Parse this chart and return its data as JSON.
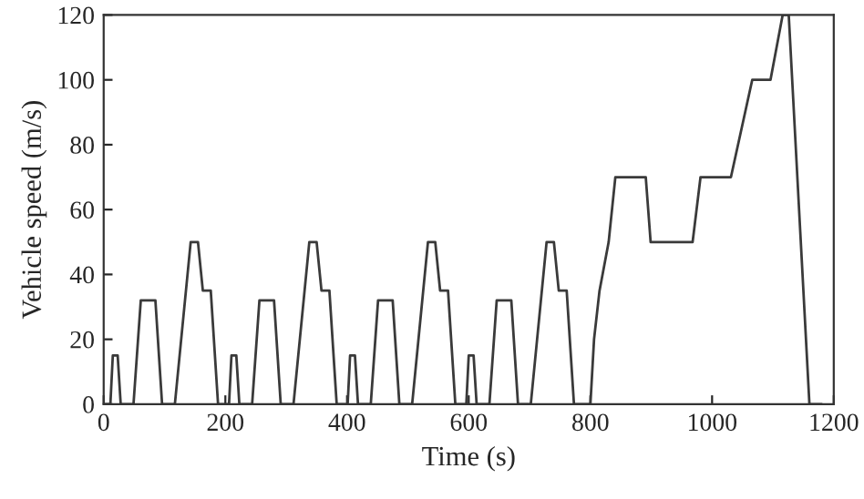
{
  "chart_data": {
    "type": "line",
    "xlabel": "Time (s)",
    "ylabel": "Vehicle speed (m/s)",
    "series": [
      {
        "color": "#3a3a3a",
        "x": [
          0,
          11,
          15,
          23,
          28,
          49,
          61,
          85,
          96,
          117,
          143,
          155,
          163,
          176,
          188,
          206,
          210,
          218,
          223,
          244,
          256,
          280,
          291,
          312,
          338,
          350,
          358,
          371,
          383,
          401,
          405,
          413,
          418,
          439,
          451,
          475,
          486,
          507,
          533,
          545,
          553,
          566,
          578,
          596,
          600,
          608,
          613,
          634,
          646,
          670,
          681,
          702,
          728,
          740,
          748,
          761,
          773,
          800,
          806,
          815,
          830,
          841,
          891,
          899,
          968,
          981,
          1031,
          1066,
          1096,
          1116,
          1126,
          1160,
          1180
        ],
        "values": [
          0,
          0,
          15,
          15,
          0,
          0,
          32,
          32,
          0,
          0,
          50,
          50,
          35,
          35,
          0,
          0,
          15,
          15,
          0,
          0,
          32,
          32,
          0,
          0,
          50,
          50,
          35,
          35,
          0,
          0,
          15,
          15,
          0,
          0,
          32,
          32,
          0,
          0,
          50,
          50,
          35,
          35,
          0,
          0,
          15,
          15,
          0,
          0,
          32,
          32,
          0,
          0,
          50,
          50,
          35,
          35,
          0,
          0,
          20,
          35,
          50,
          70,
          70,
          50,
          50,
          70,
          70,
          100,
          100,
          120,
          120,
          0,
          0
        ]
      }
    ],
    "xlim": [
      0,
      1200
    ],
    "ylim": [
      0,
      120
    ],
    "xticks": [
      0,
      200,
      400,
      600,
      800,
      1000,
      1200
    ],
    "yticks": [
      0,
      20,
      40,
      60,
      80,
      100,
      120
    ],
    "grid": false,
    "legend": false,
    "line_style": "solid",
    "marker": "none"
  }
}
